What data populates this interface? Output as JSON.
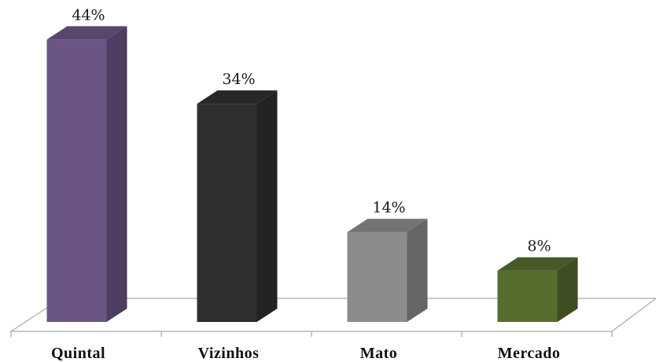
{
  "chart_data": {
    "type": "bar",
    "style": "3d-column",
    "categories": [
      "Quintal",
      "Vizinhos",
      "Mato",
      "Mercado"
    ],
    "values": [
      44,
      34,
      14,
      8
    ],
    "data_labels": [
      "44%",
      "34%",
      "14%",
      "8%"
    ],
    "unit": "%",
    "ylim": [
      0,
      46.5
    ],
    "grid": false,
    "legend": "none",
    "colors": [
      "#6b5584",
      "#2f2f2f",
      "#8c8c8c",
      "#566d2f"
    ]
  }
}
